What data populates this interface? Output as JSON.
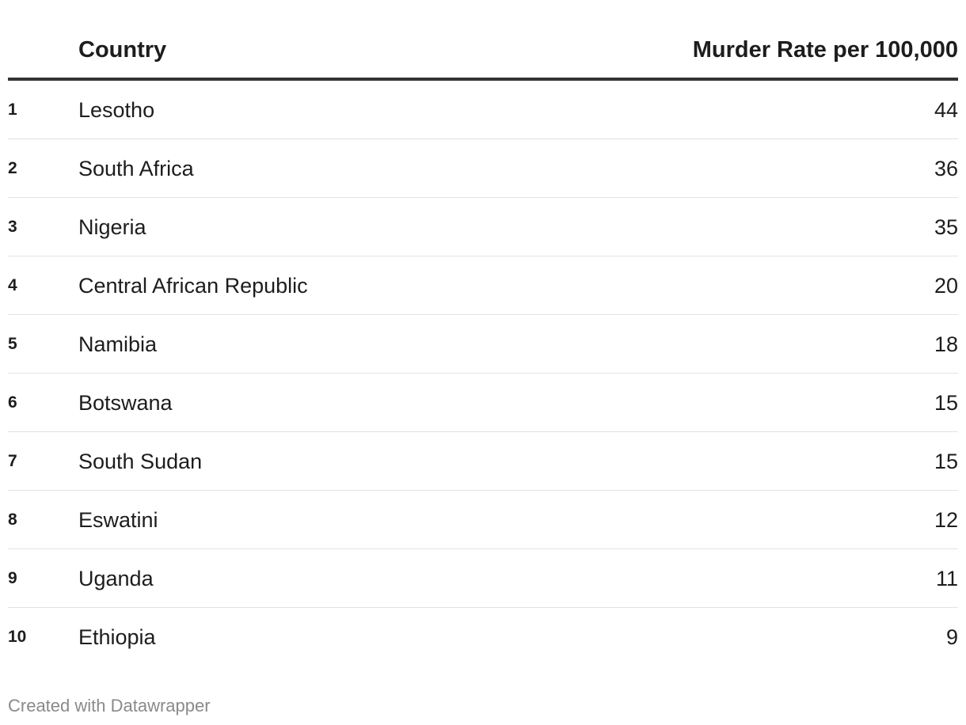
{
  "chart_data": {
    "type": "table",
    "columns": [
      "Country",
      "Murder Rate per 100,000"
    ],
    "rows": [
      {
        "rank": "1",
        "country": "Lesotho",
        "value": 44
      },
      {
        "rank": "2",
        "country": "South Africa",
        "value": 36
      },
      {
        "rank": "3",
        "country": "Nigeria",
        "value": 35
      },
      {
        "rank": "4",
        "country": "Central African Republic",
        "value": 20
      },
      {
        "rank": "5",
        "country": "Namibia",
        "value": 18
      },
      {
        "rank": "6",
        "country": "Botswana",
        "value": 15
      },
      {
        "rank": "7",
        "country": "South Sudan",
        "value": 15
      },
      {
        "rank": "8",
        "country": "Eswatini",
        "value": 12
      },
      {
        "rank": "9",
        "country": "Uganda",
        "value": 11
      },
      {
        "rank": "10",
        "country": "Ethiopia",
        "value": 9
      }
    ]
  },
  "footer": {
    "credit": "Created with Datawrapper"
  }
}
